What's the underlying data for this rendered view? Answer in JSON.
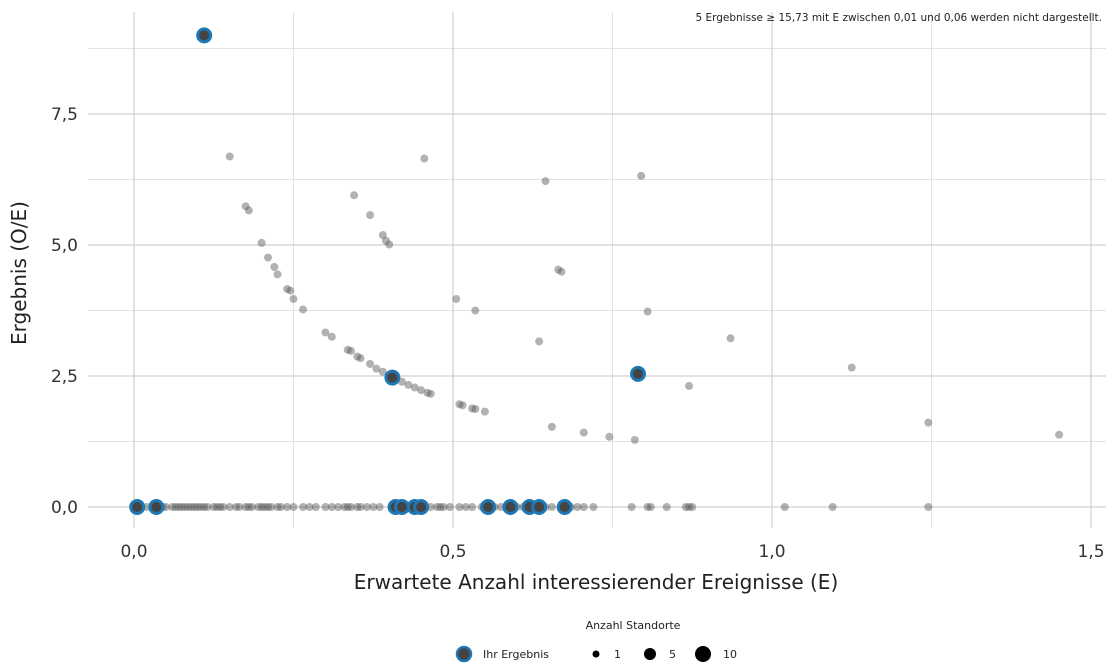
{
  "chart_data": {
    "type": "scatter",
    "title": "",
    "note": "5 Ergebnisse ≥ 15,73 mit E zwischen 0,01 und 0,06 werden nicht dargestellt.",
    "xlabel": "Erwartete Anzahl interessierender Ereignisse (E)",
    "ylabel": "Ergebnis (O/E)",
    "xlim": [
      -0.06,
      1.52
    ],
    "ylim": [
      -0.1,
      9.3
    ],
    "x_ticks": [
      0,
      0.5,
      1.0,
      1.5
    ],
    "x_tick_labels": [
      "0,0",
      "0,5",
      "1,0",
      "1,5"
    ],
    "y_ticks": [
      0,
      2.5,
      5.0,
      7.5
    ],
    "y_tick_labels": [
      "0,0",
      "2,5",
      "5,0",
      "7,5"
    ],
    "grid": true,
    "colors": {
      "others": "#555555",
      "highlight_fill": "#444444",
      "highlight_ring": "#1f78b4",
      "grid": "#d0d0d0"
    },
    "others": [
      {
        "x": 0.15,
        "y": 6.69
      },
      {
        "x": 0.175,
        "y": 5.74
      },
      {
        "x": 0.18,
        "y": 5.66
      },
      {
        "x": 0.2,
        "y": 5.04
      },
      {
        "x": 0.21,
        "y": 4.76
      },
      {
        "x": 0.22,
        "y": 4.58
      },
      {
        "x": 0.225,
        "y": 4.44
      },
      {
        "x": 0.24,
        "y": 4.16
      },
      {
        "x": 0.245,
        "y": 4.13
      },
      {
        "x": 0.25,
        "y": 3.97
      },
      {
        "x": 0.265,
        "y": 3.77
      },
      {
        "x": 0.3,
        "y": 3.33
      },
      {
        "x": 0.31,
        "y": 3.25
      },
      {
        "x": 0.335,
        "y": 3.0
      },
      {
        "x": 0.34,
        "y": 2.98
      },
      {
        "x": 0.35,
        "y": 2.87
      },
      {
        "x": 0.355,
        "y": 2.84
      },
      {
        "x": 0.37,
        "y": 2.73
      },
      {
        "x": 0.38,
        "y": 2.64
      },
      {
        "x": 0.39,
        "y": 2.58
      },
      {
        "x": 0.41,
        "y": 2.44
      },
      {
        "x": 0.42,
        "y": 2.39
      },
      {
        "x": 0.43,
        "y": 2.33
      },
      {
        "x": 0.44,
        "y": 2.28
      },
      {
        "x": 0.45,
        "y": 2.23
      },
      {
        "x": 0.46,
        "y": 2.18
      },
      {
        "x": 0.465,
        "y": 2.16
      },
      {
        "x": 0.51,
        "y": 1.96
      },
      {
        "x": 0.515,
        "y": 1.94
      },
      {
        "x": 0.53,
        "y": 1.88
      },
      {
        "x": 0.535,
        "y": 1.87
      },
      {
        "x": 0.55,
        "y": 1.82
      },
      {
        "x": 0.345,
        "y": 5.95
      },
      {
        "x": 0.37,
        "y": 5.57
      },
      {
        "x": 0.39,
        "y": 5.19
      },
      {
        "x": 0.395,
        "y": 5.08
      },
      {
        "x": 0.4,
        "y": 5.01
      },
      {
        "x": 0.455,
        "y": 6.65
      },
      {
        "x": 0.505,
        "y": 3.97
      },
      {
        "x": 0.535,
        "y": 3.75
      },
      {
        "x": 0.645,
        "y": 6.22
      },
      {
        "x": 0.635,
        "y": 3.16
      },
      {
        "x": 0.655,
        "y": 1.53
      },
      {
        "x": 0.665,
        "y": 4.53
      },
      {
        "x": 0.67,
        "y": 4.49
      },
      {
        "x": 0.705,
        "y": 1.42
      },
      {
        "x": 0.745,
        "y": 1.34
      },
      {
        "x": 0.785,
        "y": 1.28
      },
      {
        "x": 0.795,
        "y": 6.32
      },
      {
        "x": 0.805,
        "y": 3.73
      },
      {
        "x": 0.87,
        "y": 2.31
      },
      {
        "x": 0.935,
        "y": 3.22
      },
      {
        "x": 1.125,
        "y": 2.66
      },
      {
        "x": 1.245,
        "y": 1.61
      },
      {
        "x": 1.45,
        "y": 1.38
      },
      {
        "x": 0.01,
        "y": 0
      },
      {
        "x": 0.02,
        "y": 0
      },
      {
        "x": 0.035,
        "y": 0
      },
      {
        "x": 0.045,
        "y": 0
      },
      {
        "x": 0.05,
        "y": 0
      },
      {
        "x": 0.06,
        "y": 0
      },
      {
        "x": 0.065,
        "y": 0
      },
      {
        "x": 0.07,
        "y": 0
      },
      {
        "x": 0.075,
        "y": 0
      },
      {
        "x": 0.08,
        "y": 0
      },
      {
        "x": 0.085,
        "y": 0
      },
      {
        "x": 0.09,
        "y": 0
      },
      {
        "x": 0.095,
        "y": 0
      },
      {
        "x": 0.1,
        "y": 0
      },
      {
        "x": 0.105,
        "y": 0
      },
      {
        "x": 0.11,
        "y": 0
      },
      {
        "x": 0.115,
        "y": 0
      },
      {
        "x": 0.125,
        "y": 0
      },
      {
        "x": 0.13,
        "y": 0
      },
      {
        "x": 0.135,
        "y": 0
      },
      {
        "x": 0.14,
        "y": 0
      },
      {
        "x": 0.15,
        "y": 0
      },
      {
        "x": 0.16,
        "y": 0
      },
      {
        "x": 0.165,
        "y": 0
      },
      {
        "x": 0.175,
        "y": 0
      },
      {
        "x": 0.18,
        "y": 0
      },
      {
        "x": 0.185,
        "y": 0
      },
      {
        "x": 0.195,
        "y": 0
      },
      {
        "x": 0.2,
        "y": 0
      },
      {
        "x": 0.205,
        "y": 0
      },
      {
        "x": 0.21,
        "y": 0
      },
      {
        "x": 0.215,
        "y": 0
      },
      {
        "x": 0.225,
        "y": 0
      },
      {
        "x": 0.23,
        "y": 0
      },
      {
        "x": 0.24,
        "y": 0
      },
      {
        "x": 0.25,
        "y": 0
      },
      {
        "x": 0.265,
        "y": 0
      },
      {
        "x": 0.275,
        "y": 0
      },
      {
        "x": 0.285,
        "y": 0
      },
      {
        "x": 0.3,
        "y": 0
      },
      {
        "x": 0.31,
        "y": 0
      },
      {
        "x": 0.32,
        "y": 0
      },
      {
        "x": 0.33,
        "y": 0
      },
      {
        "x": 0.335,
        "y": 0
      },
      {
        "x": 0.34,
        "y": 0
      },
      {
        "x": 0.35,
        "y": 0
      },
      {
        "x": 0.355,
        "y": 0
      },
      {
        "x": 0.365,
        "y": 0
      },
      {
        "x": 0.375,
        "y": 0
      },
      {
        "x": 0.385,
        "y": 0
      },
      {
        "x": 0.45,
        "y": 0
      },
      {
        "x": 0.465,
        "y": 0
      },
      {
        "x": 0.475,
        "y": 0
      },
      {
        "x": 0.48,
        "y": 0
      },
      {
        "x": 0.485,
        "y": 0
      },
      {
        "x": 0.495,
        "y": 0
      },
      {
        "x": 0.51,
        "y": 0
      },
      {
        "x": 0.52,
        "y": 0
      },
      {
        "x": 0.53,
        "y": 0
      },
      {
        "x": 0.545,
        "y": 0
      },
      {
        "x": 0.565,
        "y": 0
      },
      {
        "x": 0.575,
        "y": 0
      },
      {
        "x": 0.6,
        "y": 0
      },
      {
        "x": 0.61,
        "y": 0
      },
      {
        "x": 0.645,
        "y": 0
      },
      {
        "x": 0.655,
        "y": 0
      },
      {
        "x": 0.685,
        "y": 0
      },
      {
        "x": 0.695,
        "y": 0
      },
      {
        "x": 0.705,
        "y": 0
      },
      {
        "x": 0.72,
        "y": 0
      },
      {
        "x": 0.78,
        "y": 0
      },
      {
        "x": 0.805,
        "y": 0
      },
      {
        "x": 0.81,
        "y": 0
      },
      {
        "x": 0.835,
        "y": 0
      },
      {
        "x": 0.865,
        "y": 0
      },
      {
        "x": 0.87,
        "y": 0
      },
      {
        "x": 0.875,
        "y": 0
      },
      {
        "x": 1.02,
        "y": 0
      },
      {
        "x": 1.095,
        "y": 0
      },
      {
        "x": 1.245,
        "y": 0
      }
    ],
    "highlight": [
      {
        "x": 0.11,
        "y": 9.0
      },
      {
        "x": 0.405,
        "y": 2.47
      },
      {
        "x": 0.79,
        "y": 2.54
      },
      {
        "x": 0.005,
        "y": 0
      },
      {
        "x": 0.035,
        "y": 0
      },
      {
        "x": 0.41,
        "y": 0
      },
      {
        "x": 0.42,
        "y": 0
      },
      {
        "x": 0.44,
        "y": 0
      },
      {
        "x": 0.45,
        "y": 0
      },
      {
        "x": 0.555,
        "y": 0
      },
      {
        "x": 0.59,
        "y": 0
      },
      {
        "x": 0.62,
        "y": 0
      },
      {
        "x": 0.635,
        "y": 0
      },
      {
        "x": 0.675,
        "y": 0
      }
    ],
    "legend": {
      "title": "Anzahl Standorte",
      "placement": "bottom",
      "highlight_label": "Ihr Ergebnis",
      "size_labels": [
        "1",
        "5",
        "10"
      ]
    }
  }
}
